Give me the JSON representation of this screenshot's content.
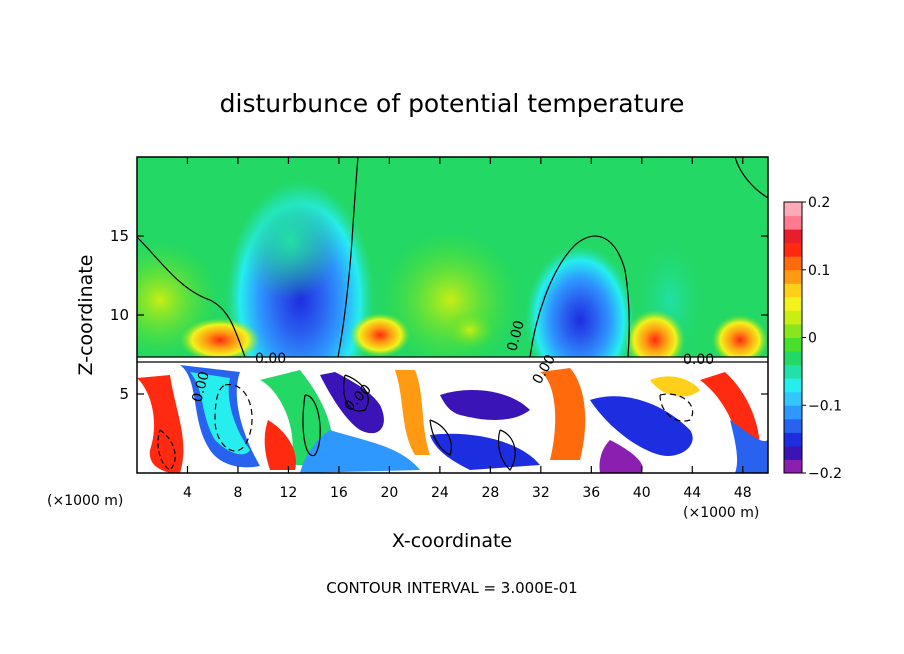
{
  "chart_data": {
    "type": "heatmap",
    "title": "disturbunce of potential temperature",
    "xlabel": "X-coordinate",
    "ylabel": "Z-coordinate",
    "x_unit": "(×1000 m)",
    "footer": "CONTOUR INTERVAL = 3.000E-01",
    "xlim": [
      0,
      50
    ],
    "ylim": [
      0,
      20
    ],
    "x_ticks": [
      4,
      8,
      12,
      16,
      20,
      24,
      28,
      32,
      36,
      40,
      44,
      48
    ],
    "y_ticks": [
      5,
      10,
      15
    ],
    "colorbar": {
      "range": [
        -0.2,
        0.2
      ],
      "tick_values": [
        0.2,
        0.1,
        0,
        -0.1,
        -0.2
      ],
      "tick_labels": [
        "0.2",
        "0.1",
        "0",
        "−0.1",
        "−0.2"
      ],
      "colors": [
        "#8a1fb0",
        "#3b14b8",
        "#1d2ee0",
        "#2a62f0",
        "#2e98ff",
        "#33c6ff",
        "#26eeee",
        "#21e0a8",
        "#23d864",
        "#48e02a",
        "#8ae61c",
        "#c8ee14",
        "#f2f21c",
        "#ffcf1a",
        "#ff9a12",
        "#ff6a0c",
        "#ff2a10",
        "#e81f2a",
        "#ff7a90",
        "#ffaab6"
      ]
    },
    "contour_labels": [
      "0.00"
    ]
  }
}
